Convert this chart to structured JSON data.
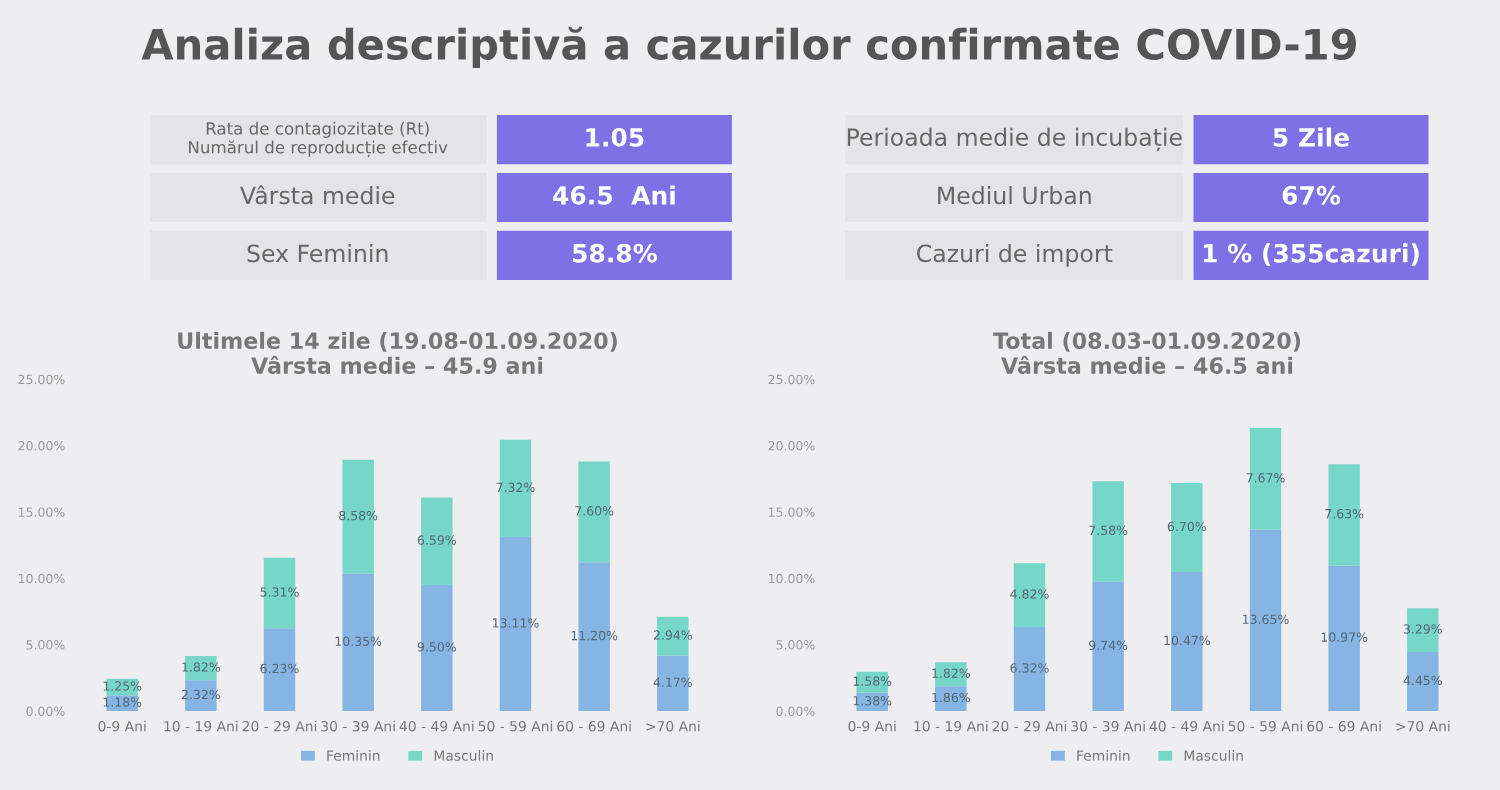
{
  "chart_data": [
    {
      "type": "other",
      "title": "Analiza descriptivă a cazurilor confirmate COVID-19",
      "annotations": [
        "Rata de contagiozitate (Rt)\nNumărul de reproducție efectiv",
        "1.05",
        "Perioada medie de incubație",
        "5 Zile",
        "Vârsta medie",
        "46.5  Ani",
        "Mediul Urban",
        "67%",
        "Sex Feminin",
        "58.8%",
        "Cazuri de import",
        "1 % (355cazuri)"
      ]
    },
    {
      "type": "bar",
      "stacked": true,
      "title": "Ultimele 14 zile (19.08-01.09.2020)",
      "subtitle": "Vârsta medie – 45.9 ani",
      "categories": [
        "0-9 Ani",
        "10 - 19 Ani",
        "20 - 29 Ani",
        "30 - 39 Ani",
        "40 - 49 Ani",
        "50 - 59 Ani",
        "60 - 69 Ani",
        ">70 Ani"
      ],
      "series": [
        {
          "name": "Feminin",
          "color": "#86b4e3",
          "values": [
            1.18,
            2.32,
            6.23,
            10.35,
            9.5,
            13.11,
            11.2,
            4.17
          ],
          "value_labels": [
            "1.18%",
            "2.32%",
            "6.23%",
            "10.35%",
            "9.50%",
            "13.11%",
            "11.20%",
            "4.17%"
          ]
        },
        {
          "name": "Masculin",
          "color": "#76d6c8",
          "values": [
            1.25,
            1.82,
            5.31,
            8.58,
            6.59,
            7.32,
            7.6,
            2.94
          ],
          "value_labels": [
            "1.25%",
            "1.82%",
            "5.31%",
            "8.58%",
            "6.59%",
            "7.32%",
            "7.60%",
            "2.94%"
          ]
        }
      ],
      "ylim": [
        0,
        25
      ],
      "yticks": [
        {
          "value": 0,
          "label": "0.00%"
        },
        {
          "value": 5,
          "label": "5.00%"
        },
        {
          "value": 10,
          "label": "10.00%"
        },
        {
          "value": 15,
          "label": "15.00%"
        },
        {
          "value": 20,
          "label": "20.00%"
        },
        {
          "value": 25,
          "label": "25.00%"
        }
      ],
      "legend": "bottom"
    },
    {
      "type": "bar",
      "stacked": true,
      "title": "Total (08.03-01.09.2020)",
      "subtitle": "Vârsta medie – 46.5 ani",
      "categories": [
        "0-9 Ani",
        "10 - 19 Ani",
        "20 - 29 Ani",
        "30 - 39 Ani",
        "40 - 49 Ani",
        "50 - 59 Ani",
        "60 - 69 Ani",
        ">70 Ani"
      ],
      "series": [
        {
          "name": "Feminin",
          "color": "#86b4e3",
          "values": [
            1.38,
            1.86,
            6.32,
            9.74,
            10.47,
            13.65,
            10.97,
            4.45
          ],
          "value_labels": [
            "1.38%",
            "1.86%",
            "6.32%",
            "9.74%",
            "10.47%",
            "13.65%",
            "10.97%",
            "4.45%"
          ]
        },
        {
          "name": "Masculin",
          "color": "#76d6c8",
          "values": [
            1.58,
            1.82,
            4.82,
            7.58,
            6.7,
            7.67,
            7.63,
            3.29
          ],
          "value_labels": [
            "1.58%",
            "1.82%",
            "4.82%",
            "7.58%",
            "6.70%",
            "7.67%",
            "7.63%",
            "3.29%"
          ]
        }
      ],
      "ylim": [
        0,
        25
      ],
      "yticks": [
        {
          "value": 0,
          "label": "0.00%"
        },
        {
          "value": 5,
          "label": "5.00%"
        },
        {
          "value": 10,
          "label": "10.00%"
        },
        {
          "value": 15,
          "label": "15.00%"
        },
        {
          "value": 20,
          "label": "20.00%"
        },
        {
          "value": 25,
          "label": "25.00%"
        }
      ],
      "legend": "bottom"
    }
  ]
}
